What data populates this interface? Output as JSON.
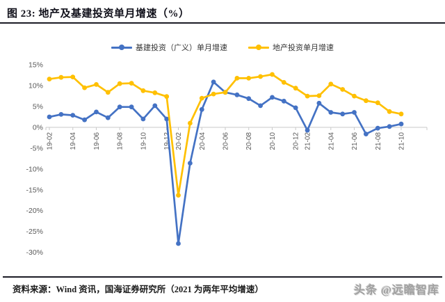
{
  "title": "图 23:  地产及基建投资单月增速（%）",
  "legend": [
    {
      "label": "基建投资（广义）单月增速",
      "color": "#4472C4",
      "marker": "circle-on-line"
    },
    {
      "label": "地产投资单月增速",
      "color": "#FFC000",
      "marker": "circle-on-line"
    }
  ],
  "footer": {
    "source": "资料来源：Wind 资讯，国海证券研究所（2021 为两年平均增速）",
    "watermark": "头条 @远瞻智库"
  },
  "chart_data": {
    "type": "line",
    "title": "地产及基建投资单月增速（%）",
    "xlabel": "",
    "ylabel": "",
    "ylim": [
      -30,
      15
    ],
    "y_ticks": [
      15,
      10,
      5,
      0,
      -5,
      -10,
      -15,
      -20,
      -25,
      -30
    ],
    "y_tick_suffix": "%",
    "grid": "off",
    "axis_line": "zero-only",
    "legend_position": "top",
    "x_label_rotation": -90,
    "categories": [
      "19-02",
      "19-03",
      "19-04",
      "19-05",
      "19-06",
      "19-07",
      "19-08",
      "19-09",
      "19-10",
      "19-11",
      "19-12",
      "20-02",
      "20-03",
      "20-04",
      "20-05",
      "20-06",
      "20-07",
      "20-08",
      "20-09",
      "20-10",
      "20-11",
      "20-12",
      "21-02",
      "21-03",
      "21-04",
      "21-05",
      "21-06",
      "21-07",
      "21-08",
      "21-09",
      "21-10"
    ],
    "x_tick_indices": [
      0,
      2,
      4,
      6,
      8,
      10,
      11,
      13,
      15,
      17,
      19,
      21,
      22,
      24,
      26,
      28,
      30
    ],
    "series": [
      {
        "name": "基建投资（广义）单月增速",
        "color": "#4472C4",
        "values": [
          2.5,
          3.1,
          2.9,
          1.8,
          3.7,
          2.3,
          4.9,
          4.9,
          2.0,
          5.2,
          2.0,
          -27.9,
          -8.6,
          4.3,
          10.9,
          8.4,
          7.8,
          6.9,
          5.2,
          7.2,
          6.3,
          4.7,
          -0.7,
          5.8,
          3.6,
          3.2,
          3.6,
          -1.6,
          -0.2,
          0.2,
          0.8
        ]
      },
      {
        "name": "地产投资单月增速",
        "color": "#FFC000",
        "values": [
          11.6,
          12.0,
          12.1,
          9.5,
          10.3,
          8.4,
          10.5,
          10.6,
          8.8,
          8.3,
          7.4,
          -16.3,
          1.0,
          7.0,
          8.0,
          8.4,
          11.8,
          11.8,
          12.2,
          12.7,
          10.8,
          9.4,
          7.5,
          7.6,
          10.4,
          9.1,
          7.5,
          6.4,
          5.9,
          3.8,
          3.2
        ]
      }
    ],
    "axis_text_color": "#595959",
    "axis_line_color": "#c9c9c9"
  }
}
